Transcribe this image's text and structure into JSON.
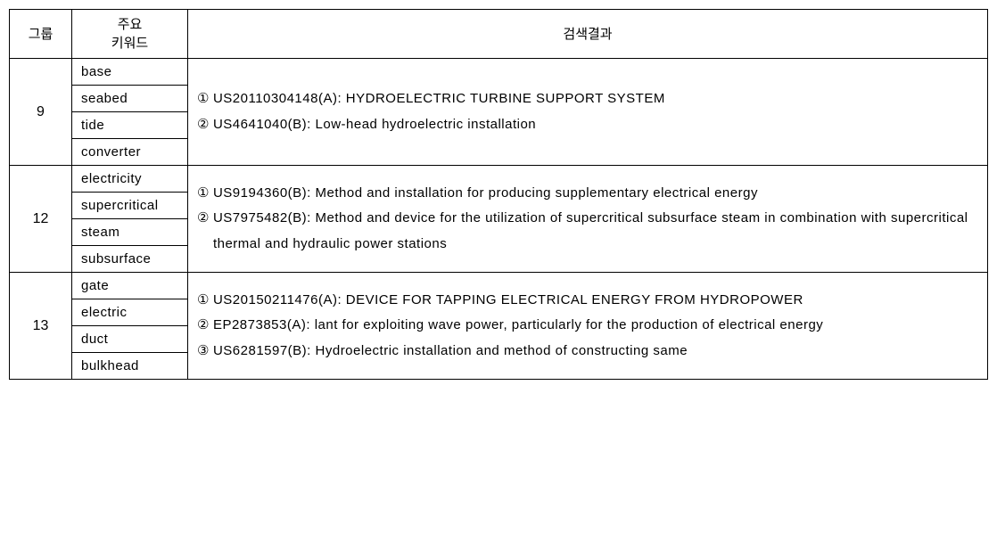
{
  "headers": {
    "group": "그룹",
    "keyword_line1": "주요",
    "keyword_line2": "키워드",
    "results": "검색결과"
  },
  "groups": [
    {
      "id": "9",
      "keywords": [
        "base",
        "seabed",
        "tide",
        "converter"
      ],
      "results": [
        {
          "num": "①",
          "text": "US20110304148(A): HYDROELECTRIC TURBINE SUPPORT SYSTEM"
        },
        {
          "num": "②",
          "text": "US4641040(B): Low-head hydroelectric installation"
        }
      ]
    },
    {
      "id": "12",
      "keywords": [
        "electricity",
        "supercritical",
        "steam",
        "subsurface"
      ],
      "results": [
        {
          "num": "①",
          "text": "US9194360(B): Method and installation for producing supplementary electrical energy"
        },
        {
          "num": "②",
          "text": "US7975482(B): Method and device for the utilization of supercritical subsurface steam in combination with supercritical thermal and hydraulic power stations"
        }
      ]
    },
    {
      "id": "13",
      "keywords": [
        "gate",
        "electric",
        "duct",
        "bulkhead"
      ],
      "results": [
        {
          "num": "①",
          "text": "US20150211476(A): DEVICE FOR TAPPING ELECTRICAL ENERGY FROM HYDROPOWER"
        },
        {
          "num": "②",
          "text": "EP2873853(A): lant for exploiting wave power, particularly for the production of electrical energy"
        },
        {
          "num": "③",
          "text": "US6281597(B): Hydroelectric installation and method of constructing same"
        }
      ]
    }
  ]
}
